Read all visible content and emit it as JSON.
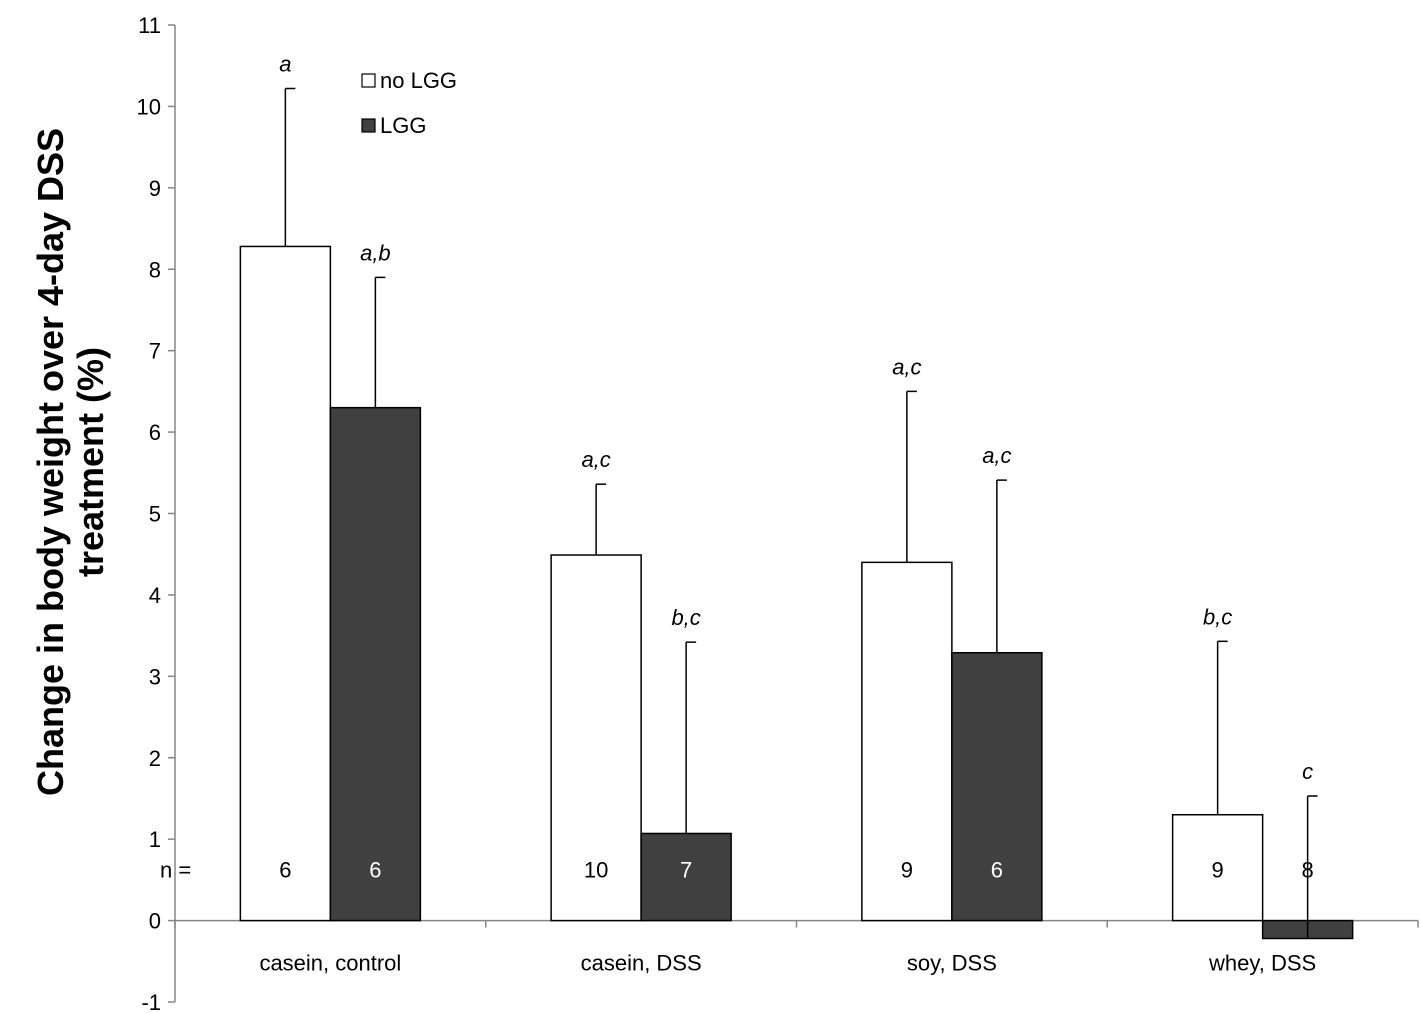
{
  "chart_data": {
    "type": "bar",
    "ylabel_lines": [
      "Change in body weight over 4-day DSS",
      "treatment (%)"
    ],
    "ylim": [
      -1,
      11
    ],
    "yticks": [
      -1,
      0,
      1,
      2,
      3,
      4,
      5,
      6,
      7,
      8,
      9,
      10,
      11
    ],
    "categories": [
      "casein, control",
      "casein, DSS",
      "soy, DSS",
      "whey, DSS"
    ],
    "n_prefix": "n  =",
    "legend_placement": "top-left",
    "series": [
      {
        "name": "no LGG",
        "color": "#ffffff",
        "values": [
          8.28,
          4.49,
          4.4,
          1.3
        ],
        "error_upper": [
          10.22,
          5.36,
          6.5,
          3.43
        ],
        "significance": [
          "a",
          "a,c",
          "a,c",
          "b,c"
        ],
        "n": [
          "6",
          "10",
          "9",
          "9"
        ]
      },
      {
        "name": "LGG",
        "color": "#404040",
        "values": [
          6.3,
          1.07,
          3.29,
          -0.22
        ],
        "error_upper": [
          7.9,
          3.42,
          5.41,
          1.53
        ],
        "significance": [
          "a,b",
          "b,c",
          "a,c",
          "c"
        ],
        "n": [
          "6",
          "7",
          "6",
          "8"
        ]
      }
    ]
  }
}
